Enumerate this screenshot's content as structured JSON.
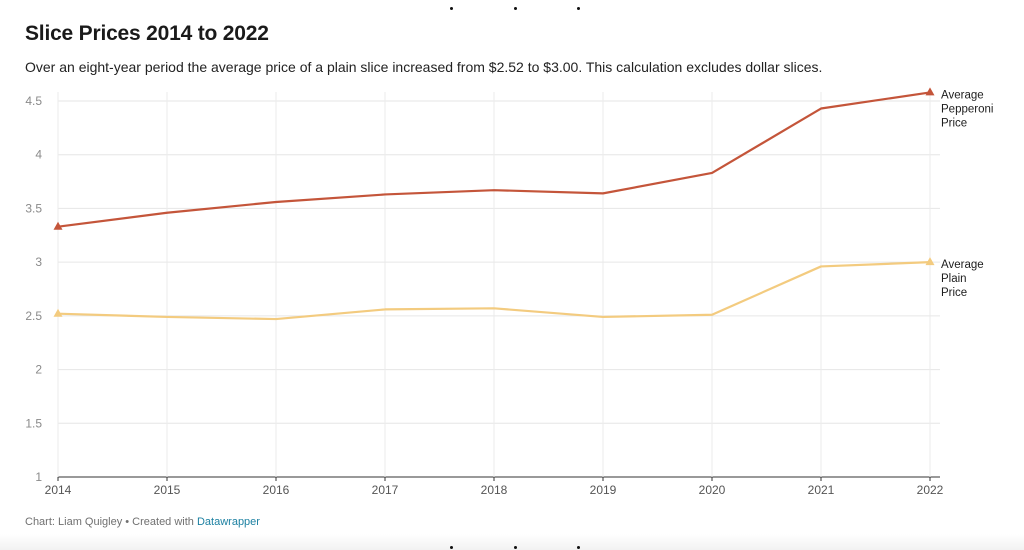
{
  "chart_data": {
    "type": "line",
    "title": "Slice Prices 2014 to 2022",
    "subtitle": "Over an eight-year period the average price of a plain slice increased from $2.52 to $3.00. This calculation excludes dollar slices.",
    "x": [
      "2014",
      "2015",
      "2016",
      "2017",
      "2018",
      "2019",
      "2020",
      "2021",
      "2022"
    ],
    "y_ticks": [
      "1",
      "1.5",
      "2",
      "2.5",
      "3",
      "3.5",
      "4",
      "4.5"
    ],
    "ylim": [
      1,
      4.6
    ],
    "xlabel": "",
    "ylabel": "",
    "grid": true,
    "series": [
      {
        "name": "Average Pepperoni Price",
        "label_lines": [
          "Average",
          "Pepperoni",
          "Price"
        ],
        "color": "#c4553a",
        "values": [
          3.33,
          3.46,
          3.56,
          3.63,
          3.67,
          3.64,
          3.83,
          4.43,
          4.58
        ]
      },
      {
        "name": "Average Plain Price",
        "label_lines": [
          "Average",
          "Plain",
          "Price"
        ],
        "color": "#f3cb7f",
        "values": [
          2.52,
          2.49,
          2.47,
          2.56,
          2.57,
          2.49,
          2.51,
          2.96,
          3.0
        ]
      }
    ]
  },
  "footer": {
    "text": "Chart: Liam Quigley • Created with ",
    "link": "Datawrapper"
  }
}
